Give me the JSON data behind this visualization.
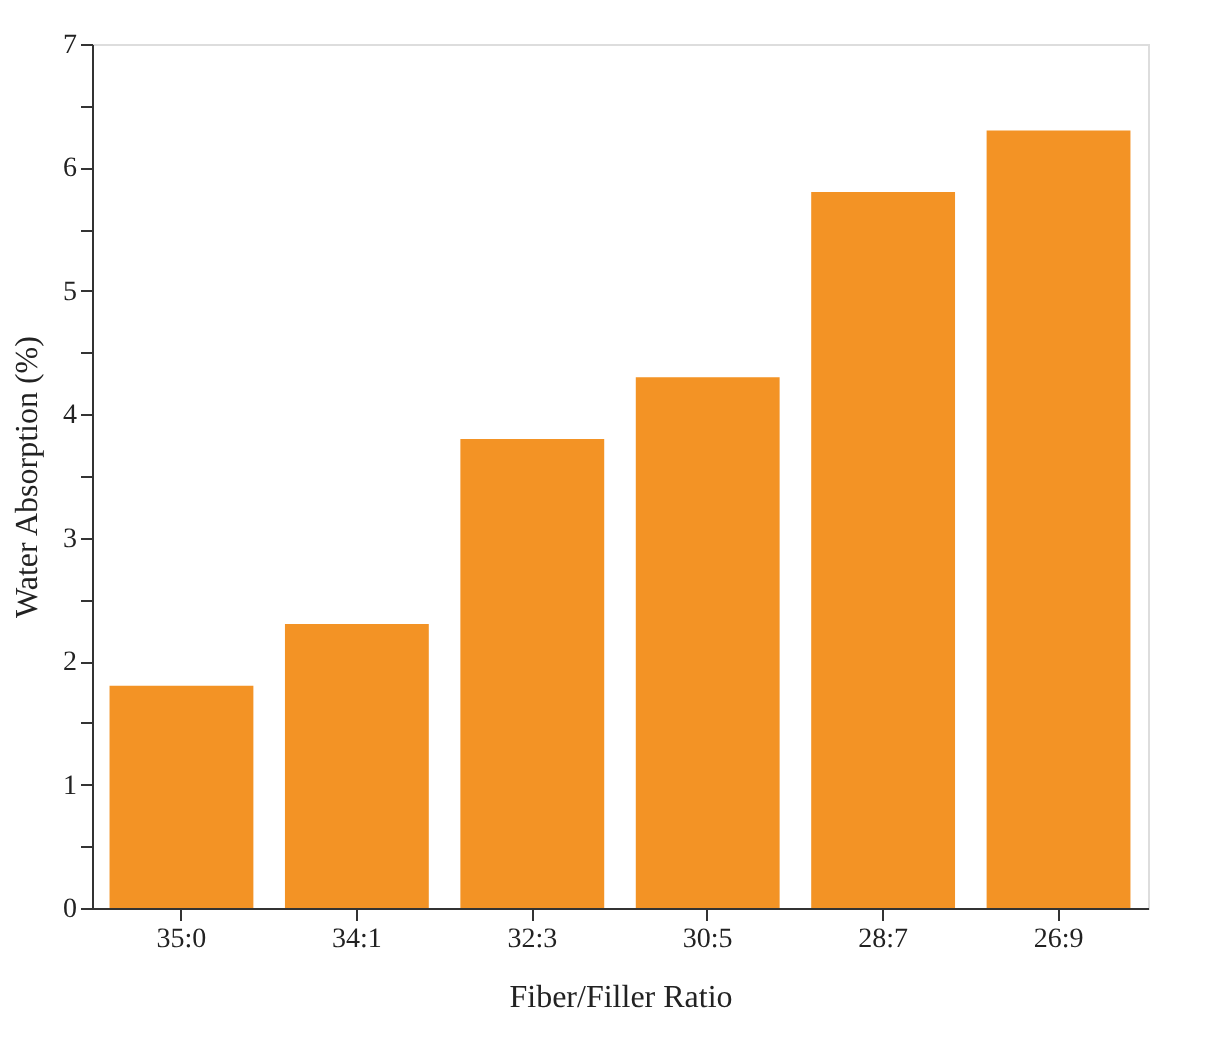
{
  "chart_data": {
    "type": "bar",
    "categories": [
      "35:0",
      "34:1",
      "32:3",
      "30:5",
      "28:7",
      "26:9"
    ],
    "values": [
      1.8,
      2.3,
      3.8,
      4.3,
      5.8,
      6.3
    ],
    "color": "#f39325",
    "xlabel": "Fiber/Filler Ratio",
    "ylabel": "Water Absorption (%)",
    "ylim": [
      0,
      7
    ],
    "yticks": [
      0,
      {
        "value": 0.5,
        "label": null
      },
      1,
      {
        "value": 1.5,
        "label": null
      },
      2,
      {
        "value": 2.5,
        "label": null
      },
      3,
      {
        "value": 3.5,
        "label": null
      },
      4,
      {
        "value": 4.5,
        "label": null
      },
      5,
      {
        "value": 5.5,
        "label": null
      },
      6,
      {
        "value": 6.5,
        "label": null
      },
      7
    ],
    "grid": false
  }
}
